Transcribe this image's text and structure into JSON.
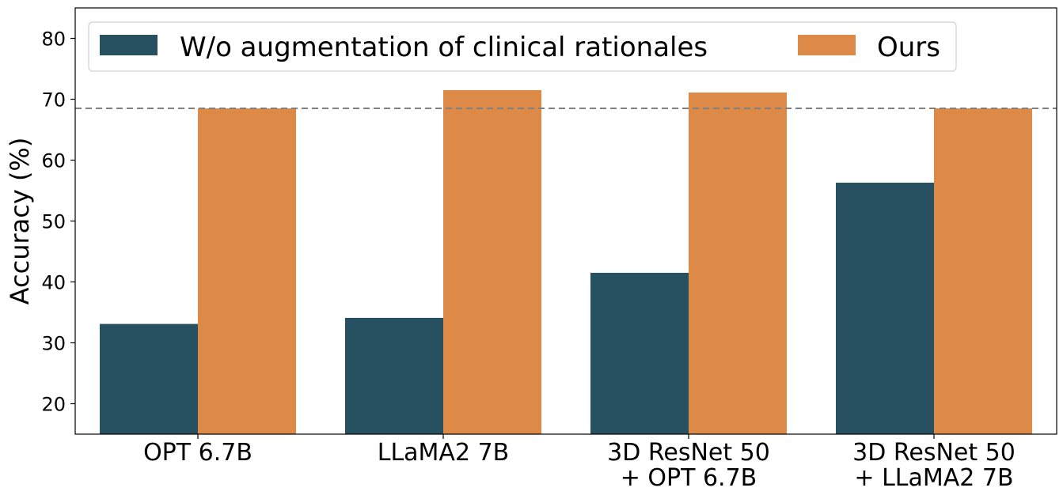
{
  "chart_data": {
    "type": "bar",
    "categories": [
      [
        "OPT 6.7B"
      ],
      [
        "LLaMA2 7B"
      ],
      [
        "3D ResNet 50",
        "+ OPT 6.7B"
      ],
      [
        "3D ResNet 50",
        "+ LLaMA2 7B"
      ]
    ],
    "series": [
      {
        "name": "W/o augmentation of clinical rationales",
        "color": "#275061",
        "values": [
          33.1,
          34.1,
          41.5,
          56.3
        ]
      },
      {
        "name": "Ours",
        "color": "#dd8a49",
        "values": [
          68.5,
          71.5,
          71.1,
          68.5
        ]
      }
    ],
    "ylabel": "Accuracy (%)",
    "xlabel": "",
    "ylim": [
      15,
      85
    ],
    "yticks": [
      20,
      30,
      40,
      50,
      60,
      70,
      80
    ],
    "reference_line": {
      "value": 68.5,
      "style": "dashed",
      "color": "#808080"
    },
    "legend": {
      "position": "top",
      "ncol": 2
    }
  }
}
